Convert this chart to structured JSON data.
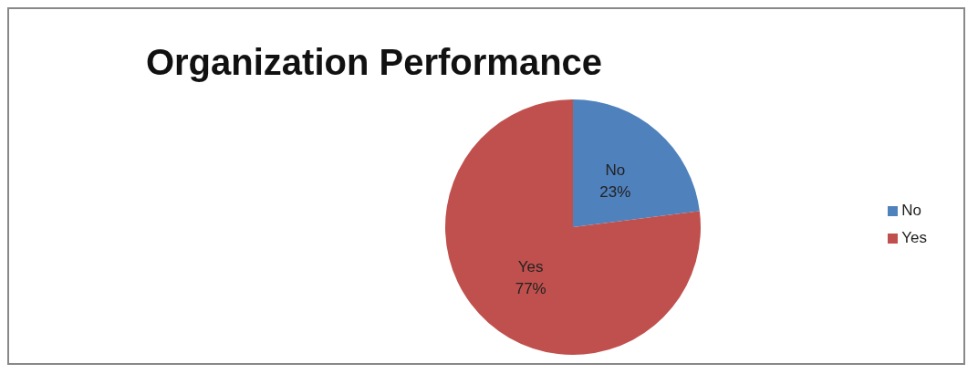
{
  "chart_data": {
    "type": "pie",
    "title": "Organization Performance",
    "categories": [
      "No",
      "Yes"
    ],
    "values": [
      23,
      77
    ],
    "colors": [
      "#4f81bd",
      "#c0504d"
    ],
    "value_labels": [
      "23%",
      "77%"
    ],
    "legend": "right"
  }
}
